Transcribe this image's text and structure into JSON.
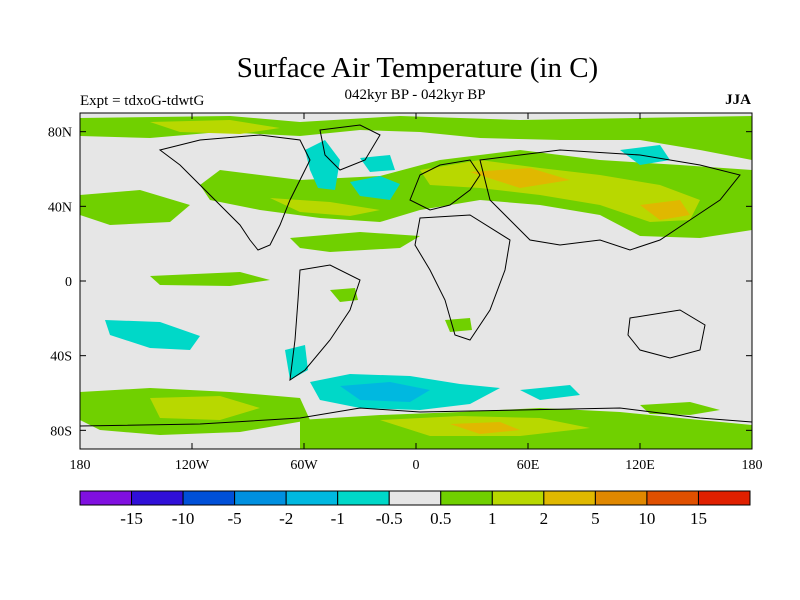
{
  "title": "Surface Air Temperature (in C)",
  "subtitle": "042kyr BP - 042kyr BP",
  "experiment": "Expt = tdxoG-tdwtG",
  "season": "JJA",
  "map": {
    "lon_range": [
      -180,
      180
    ],
    "lat_range": [
      -90,
      90
    ],
    "x_ticks": [
      {
        "lon": -180,
        "label": "180"
      },
      {
        "lon": -120,
        "label": "120W"
      },
      {
        "lon": -60,
        "label": "60W"
      },
      {
        "lon": 0,
        "label": "0"
      },
      {
        "lon": 60,
        "label": "60E"
      },
      {
        "lon": 120,
        "label": "120E"
      },
      {
        "lon": 180,
        "label": "180"
      }
    ],
    "y_ticks": [
      {
        "lat": 80,
        "label": "80N"
      },
      {
        "lat": 40,
        "label": "40N"
      },
      {
        "lat": 0,
        "label": "0"
      },
      {
        "lat": -40,
        "label": "40S"
      },
      {
        "lat": -80,
        "label": "80S"
      }
    ],
    "background_color": "#e6e6e6"
  },
  "colorbar": {
    "colors": [
      "#8010e0",
      "#3010d8",
      "#0050d8",
      "#0090e0",
      "#00b8e0",
      "#00d8c8",
      "#e6e6e6",
      "#70d000",
      "#b8d800",
      "#e0b800",
      "#e08800",
      "#e05000",
      "#e02000"
    ],
    "labels": [
      "-15",
      "-10",
      "-5",
      "-2",
      "-1",
      "-0.5",
      "0.5",
      "1",
      "2",
      "5",
      "10",
      "15"
    ]
  }
}
